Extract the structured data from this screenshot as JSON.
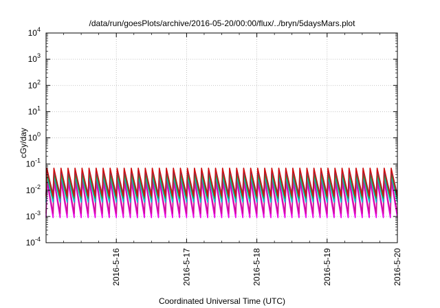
{
  "chart_data": {
    "type": "line",
    "title": "/data/run/goesPlots/archive/2016-05-20/00:00/flux/../bryn/5daysMars.plot",
    "xlabel": "Coordinated Universal Time (UTC)",
    "ylabel": "cGy/day",
    "yscale": "log",
    "ylim_exponents": [
      -4,
      4
    ],
    "y_tick_mantissa": "10",
    "y_tick_exponents": [
      "-4",
      "-3",
      "-2",
      "-1",
      "0",
      "1",
      "2",
      "3",
      "4"
    ],
    "x_range_days": [
      "2016-05-15",
      "2016-05-20"
    ],
    "x_ticks": [
      "2016-5-16",
      "2016-5-17",
      "2016-5-18",
      "2016-5-19",
      "2016-5-20"
    ],
    "grid": true,
    "cycles_per_day": 10,
    "series": [
      {
        "color": "#ee00ee",
        "peak": 0.02,
        "min": 0.0009,
        "lead": 0.35
      },
      {
        "color": "#cc1493",
        "peak": 0.03,
        "min": 0.0013,
        "lead": 0.0
      },
      {
        "color": "#00c8c8",
        "peak": 0.035,
        "min": 0.0035,
        "lead": 0.15
      },
      {
        "color": "#2e9b2e",
        "peak": 0.045,
        "min": 0.005,
        "lead": 0.1
      },
      {
        "color": "#1f4fdc",
        "peak": 0.06,
        "min": 0.007,
        "lead": 0.05
      },
      {
        "color": "#d01010",
        "peak": 0.07,
        "min": 0.006,
        "lead": 0.0
      }
    ]
  }
}
